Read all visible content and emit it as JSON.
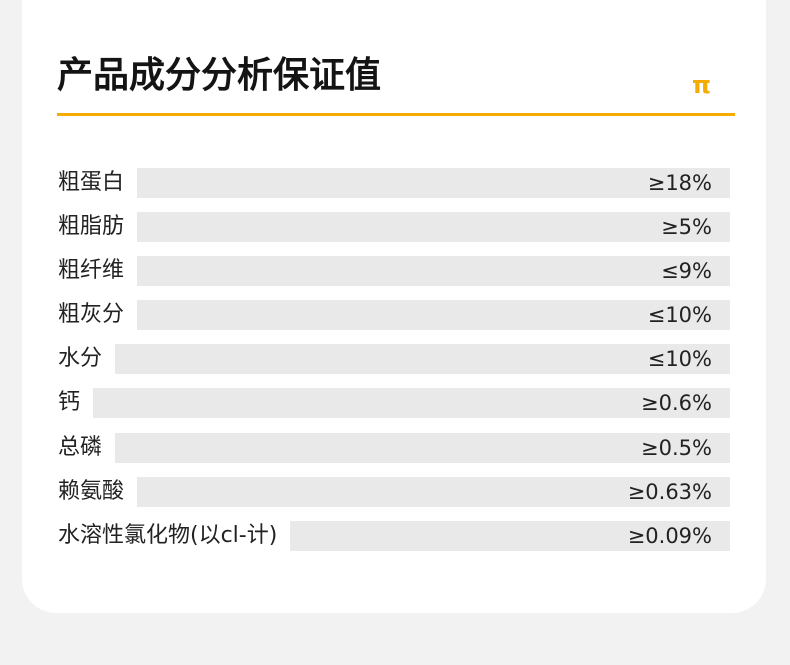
{
  "header": {
    "title": "产品成分分析保证值",
    "icon_glyph": "π",
    "accent_color": "#f5ac00"
  },
  "nutrients": [
    {
      "name": "粗蛋白",
      "value": "≥18%"
    },
    {
      "name": "粗脂肪",
      "value": "≥5%"
    },
    {
      "name": "粗纤维",
      "value": "≤9%"
    },
    {
      "name": "粗灰分",
      "value": "≤10%"
    },
    {
      "name": "水分",
      "value": "≤10%"
    },
    {
      "name": "钙",
      "value": "≥0.6%"
    },
    {
      "name": "总磷",
      "value": "≥0.5%"
    },
    {
      "name": "赖氨酸",
      "value": "≥0.63%"
    },
    {
      "name": "水溶性氯化物(以cl-计)",
      "value": "≥0.09%"
    }
  ]
}
